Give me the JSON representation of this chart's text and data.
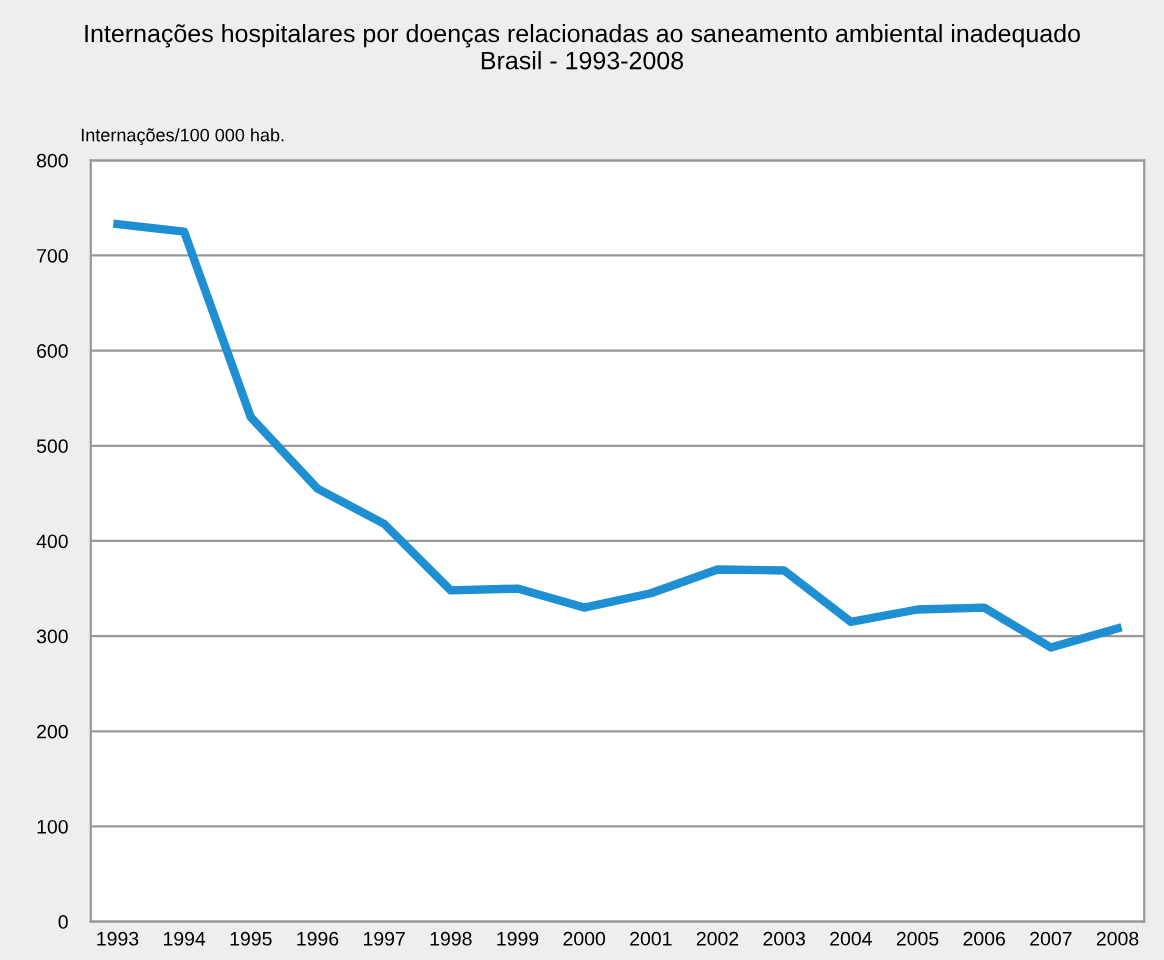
{
  "chart_data": {
    "type": "line",
    "title": "Internações hospitalares por doenças relacionadas ao saneamento ambiental inadequado\nBrasil - 1993-2008",
    "ylabel": "Internações/100 000 hab.",
    "x": [
      1993,
      1994,
      1995,
      1996,
      1997,
      1998,
      1999,
      2000,
      2001,
      2002,
      2003,
      2004,
      2005,
      2006,
      2007,
      2008
    ],
    "series": [
      {
        "color": "#1e8fd2",
        "values": [
          733,
          725,
          530,
          455,
          418,
          348,
          350,
          330,
          345,
          370,
          369,
          315,
          328,
          330,
          288,
          308
        ]
      }
    ],
    "xlim": [
      1992.6,
      2008.4
    ],
    "xticks": [
      1993,
      1994,
      1995,
      1996,
      1997,
      1998,
      1999,
      2000,
      2001,
      2002,
      2003,
      2004,
      2005,
      2006,
      2007,
      2008
    ],
    "ylim": [
      0,
      800
    ],
    "yticks": [
      0,
      100,
      200,
      300,
      400,
      500,
      600,
      700,
      800
    ],
    "grid": "y",
    "legend": false,
    "marker": "none",
    "line_style": "solid"
  }
}
